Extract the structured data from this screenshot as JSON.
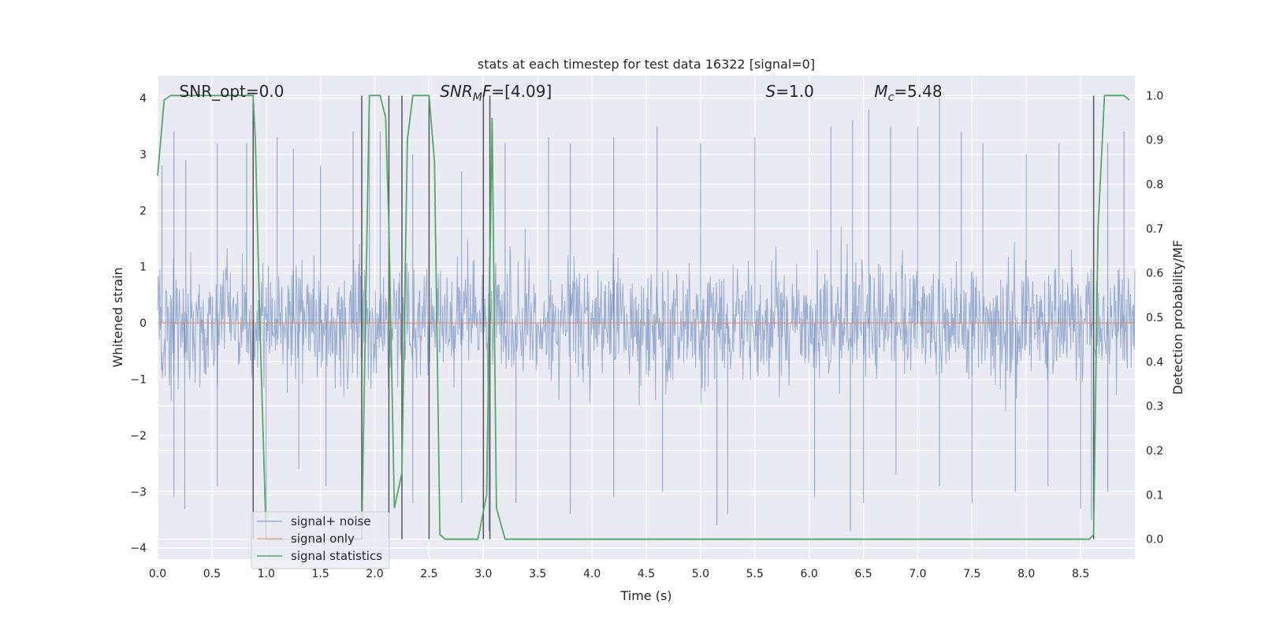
{
  "chart_data": {
    "type": "line",
    "title": "stats at each timestep for test data 16322 [signal=0]",
    "xlabel": "Time (s)",
    "ylabel_left": "Whitened strain",
    "ylabel_right": "Detection probability/MF",
    "xlim": [
      0.0,
      9.0
    ],
    "ylim_left": [
      -4.2,
      4.4
    ],
    "ylim_right": [
      -0.045,
      1.045
    ],
    "x_ticks": [
      "0.0",
      "0.5",
      "1.0",
      "1.5",
      "2.0",
      "2.5",
      "3.0",
      "3.5",
      "4.0",
      "4.5",
      "5.0",
      "5.5",
      "6.0",
      "6.5",
      "7.0",
      "7.5",
      "8.0",
      "8.5"
    ],
    "y_ticks_left": [
      "−4",
      "−3",
      "−2",
      "−1",
      "0",
      "1",
      "2",
      "3",
      "4"
    ],
    "y_ticks_right": [
      "0.0",
      "0.1",
      "0.2",
      "0.3",
      "0.4",
      "0.5",
      "0.6",
      "0.7",
      "0.8",
      "0.9",
      "1.0"
    ],
    "grid": true,
    "legend_position": "lower-left",
    "annotations": [
      {
        "base": "SNR_opt=0.0",
        "sub": "",
        "rest": "",
        "italic": false,
        "x": 0.2
      },
      {
        "base": "SNR",
        "sub": "M",
        "rest": "F=[4.09]",
        "italic": true,
        "x": 2.6
      },
      {
        "base": "S",
        "sub": "",
        "rest": "=1.0",
        "italic": true,
        "x": 5.6
      },
      {
        "base": "M",
        "sub": "c",
        "rest": "=5.48",
        "italic": true,
        "x": 6.6
      }
    ],
    "series": [
      {
        "name": "signal+ noise",
        "color": "#4c72b0",
        "note_visible": "dense whitened noise trace spanning roughly -3.7 to +4.0",
        "spike_peaks_pos": [
          [
            0.04,
            2.8
          ],
          [
            0.15,
            3.4
          ],
          [
            0.26,
            2.9
          ],
          [
            0.55,
            3.2
          ],
          [
            0.82,
            3.2
          ],
          [
            1.1,
            3.3
          ],
          [
            1.25,
            3.1
          ],
          [
            1.5,
            2.8
          ],
          [
            1.8,
            3.4
          ],
          [
            1.95,
            3.7
          ],
          [
            2.05,
            3.4
          ],
          [
            2.35,
            3.0
          ],
          [
            2.8,
            2.7
          ],
          [
            3.2,
            3.2
          ],
          [
            3.6,
            3.3
          ],
          [
            3.8,
            3.2
          ],
          [
            4.2,
            3.3
          ],
          [
            4.6,
            3.5
          ],
          [
            5.0,
            3.2
          ],
          [
            5.5,
            3.3
          ],
          [
            6.2,
            3.5
          ],
          [
            6.4,
            3.6
          ],
          [
            6.55,
            3.8
          ],
          [
            6.75,
            3.5
          ],
          [
            7.0,
            3.5
          ],
          [
            7.2,
            4.0
          ],
          [
            7.4,
            3.4
          ],
          [
            7.6,
            3.2
          ],
          [
            8.0,
            3.0
          ],
          [
            8.3,
            3.2
          ],
          [
            8.75,
            3.2
          ],
          [
            8.9,
            3.4
          ]
        ],
        "spike_peaks_neg": [
          [
            0.15,
            -3.1
          ],
          [
            0.25,
            -3.3
          ],
          [
            0.55,
            -2.9
          ],
          [
            0.88,
            -3.3
          ],
          [
            1.0,
            -3.5
          ],
          [
            1.3,
            -2.6
          ],
          [
            1.55,
            -2.9
          ],
          [
            1.88,
            -3.5
          ],
          [
            2.35,
            -3.2
          ],
          [
            2.8,
            -3.2
          ],
          [
            3.05,
            -3.7
          ],
          [
            3.3,
            -3.2
          ],
          [
            3.8,
            -3.4
          ],
          [
            4.2,
            -3.1
          ],
          [
            4.65,
            -3.0
          ],
          [
            5.15,
            -3.6
          ],
          [
            5.25,
            -3.4
          ],
          [
            6.05,
            -3.1
          ],
          [
            6.38,
            -3.7
          ],
          [
            6.5,
            -3.2
          ],
          [
            6.8,
            -2.7
          ],
          [
            7.2,
            -2.9
          ],
          [
            7.5,
            -3.2
          ],
          [
            7.9,
            -3.0
          ],
          [
            8.2,
            -2.9
          ],
          [
            8.5,
            -3.3
          ],
          [
            8.6,
            -3.5
          ],
          [
            8.75,
            -3.0
          ]
        ]
      },
      {
        "name": "signal only",
        "color": "#dd8452",
        "x": [
          0.0,
          9.0
        ],
        "y": [
          0.0,
          0.0
        ]
      },
      {
        "name": "signal statistics",
        "color": "#55a868",
        "axis": "right",
        "x": [
          0.0,
          0.06,
          0.12,
          0.2,
          0.3,
          0.5,
          0.7,
          0.88,
          0.9,
          0.94,
          1.0,
          1.88,
          1.9,
          1.95,
          2.05,
          2.1,
          2.13,
          2.18,
          2.25,
          2.3,
          2.35,
          2.45,
          2.5,
          2.55,
          2.6,
          2.65,
          2.75,
          2.85,
          2.95,
          3.03,
          3.08,
          3.12,
          3.2,
          3.4,
          4.0,
          5.0,
          6.0,
          7.0,
          8.0,
          8.58,
          8.62,
          8.66,
          8.72,
          8.9,
          8.95
        ],
        "y": [
          0.82,
          0.99,
          1.0,
          1.0,
          1.0,
          1.0,
          1.0,
          1.0,
          0.9,
          0.5,
          0.0,
          0.0,
          0.3,
          1.0,
          1.0,
          0.95,
          0.7,
          0.07,
          0.15,
          0.9,
          1.0,
          1.0,
          1.0,
          0.85,
          0.01,
          0.0,
          0.0,
          0.0,
          0.0,
          0.1,
          0.95,
          0.07,
          0.0,
          0.0,
          0.0,
          0.0,
          0.0,
          0.0,
          0.0,
          0.0,
          0.01,
          0.7,
          1.0,
          1.0,
          0.99
        ]
      }
    ],
    "vlines_x": [
      0.88,
      1.88,
      2.13,
      2.25,
      2.5,
      3.0,
      3.06,
      8.62
    ]
  }
}
